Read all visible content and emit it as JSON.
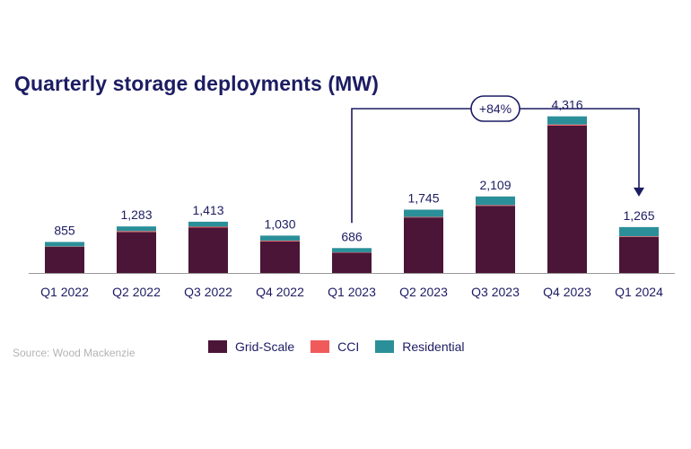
{
  "chart_data": {
    "type": "bar",
    "stacked": true,
    "title": "Quarterly storage deployments (MW)",
    "categories": [
      "Q1 2022",
      "Q2 2022",
      "Q3 2022",
      "Q4 2022",
      "Q1 2023",
      "Q2 2023",
      "Q3 2023",
      "Q4 2023",
      "Q1 2024"
    ],
    "totals": [
      "855",
      "1,283",
      "1,413",
      "1,030",
      "686",
      "1,745",
      "2,109",
      "4,316",
      "1,265"
    ],
    "series": [
      {
        "name": "Grid-Scale",
        "color": "#4b1537",
        "values": [
          720,
          1130,
          1250,
          870,
          560,
          1530,
          1850,
          4060,
          990
        ]
      },
      {
        "name": "CCI",
        "color": "#f05a5a",
        "values": [
          10,
          25,
          25,
          20,
          10,
          15,
          20,
          30,
          20
        ]
      },
      {
        "name": "Residential",
        "color": "#2b8f99",
        "values": [
          125,
          128,
          138,
          140,
          116,
          200,
          239,
          226,
          255
        ]
      }
    ],
    "ylim": [
      0,
      4800
    ],
    "grid": false,
    "legend_position": "bottom",
    "annotation": {
      "text": "+84%",
      "from": "Q1 2023",
      "to": "Q1 2024"
    }
  },
  "source": "Source: Wood Mackenzie",
  "colors": {
    "title": "#1c1c63",
    "axis": "#999999",
    "annotation": "#1c1c63"
  }
}
